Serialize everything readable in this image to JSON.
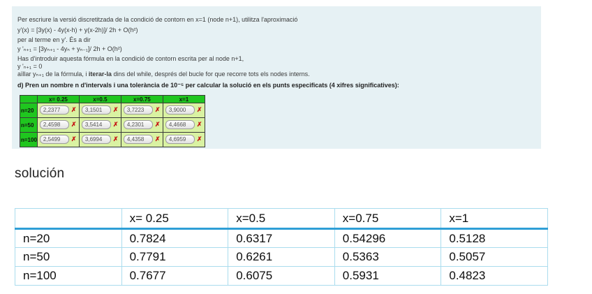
{
  "panel": {
    "background": "#e6f1f4",
    "line1": "Per escriure la versió discretitzada de la condició de contorn en x=1 (node n+1), utilitza l'aproximació",
    "line2": "y'(x) = [3y(x) - 4y(x-h) + y(x-2h)]/ 2h + O(h²)",
    "line3": "per al terme en y'. És a dir",
    "line4": "y 'ₙ₊₁ = [3yₙ₊₁ - 4yₙ + yₙ₋₁]/ 2h + O(h²)",
    "line5": "Has d'introduir aquesta fórmula en la condició de contorn escrita per al node n+1,",
    "line6": "y 'ₙ₊₁  = 0",
    "line7": {
      "prefix": "aïllar yₙ₊₁ de la fórmula, i ",
      "bold": "iterar-la",
      "suffix": " dins del while, després del bucle for que recorre tots els nodes interns."
    },
    "d_line": "d) Pren un nombre n d'intervals i una tolerància de 10⁻⁵ per calcular la solució en els punts especificats (4 xifres significatives):"
  },
  "answer_table": {
    "headers": [
      "",
      "x= 0.25",
      "x=0.5",
      "x=0.75",
      "x=1"
    ],
    "rows": [
      {
        "label": "n=20",
        "inputs": [
          "2,2377",
          "3,1501",
          "3,7223",
          "3,9000"
        ]
      },
      {
        "label": "n=50",
        "inputs": [
          "2,4598",
          "3,5414",
          "4,2301",
          "4,4668"
        ]
      },
      {
        "label": "n=100",
        "inputs": [
          "2,5499",
          "3,6994",
          "4,4358",
          "4,6959"
        ]
      }
    ],
    "wrong_icon": "✗",
    "colors": {
      "header_green": "#1fc61f",
      "cell_green": "#d9f2a2",
      "wrong_red": "#c51111"
    }
  },
  "solution": {
    "heading": "solución",
    "table": {
      "headers": [
        "",
        "x= 0.25",
        "x=0.5",
        "x=0.75",
        "x=1"
      ],
      "rows": [
        {
          "label": "n=20",
          "values": [
            "0.7824",
            "0.6317",
            "0.54296",
            "0.5128"
          ]
        },
        {
          "label": "n=50",
          "values": [
            "0.7791",
            "0.6261",
            "0.5363",
            "0.5057"
          ]
        },
        {
          "label": "n=100",
          "values": [
            "0.7677",
            "0.6075",
            "0.5931",
            "0.4823"
          ]
        }
      ],
      "colors": {
        "grid_blue": "#aadcee",
        "header_rule_blue": "#2f9fd6"
      }
    }
  }
}
